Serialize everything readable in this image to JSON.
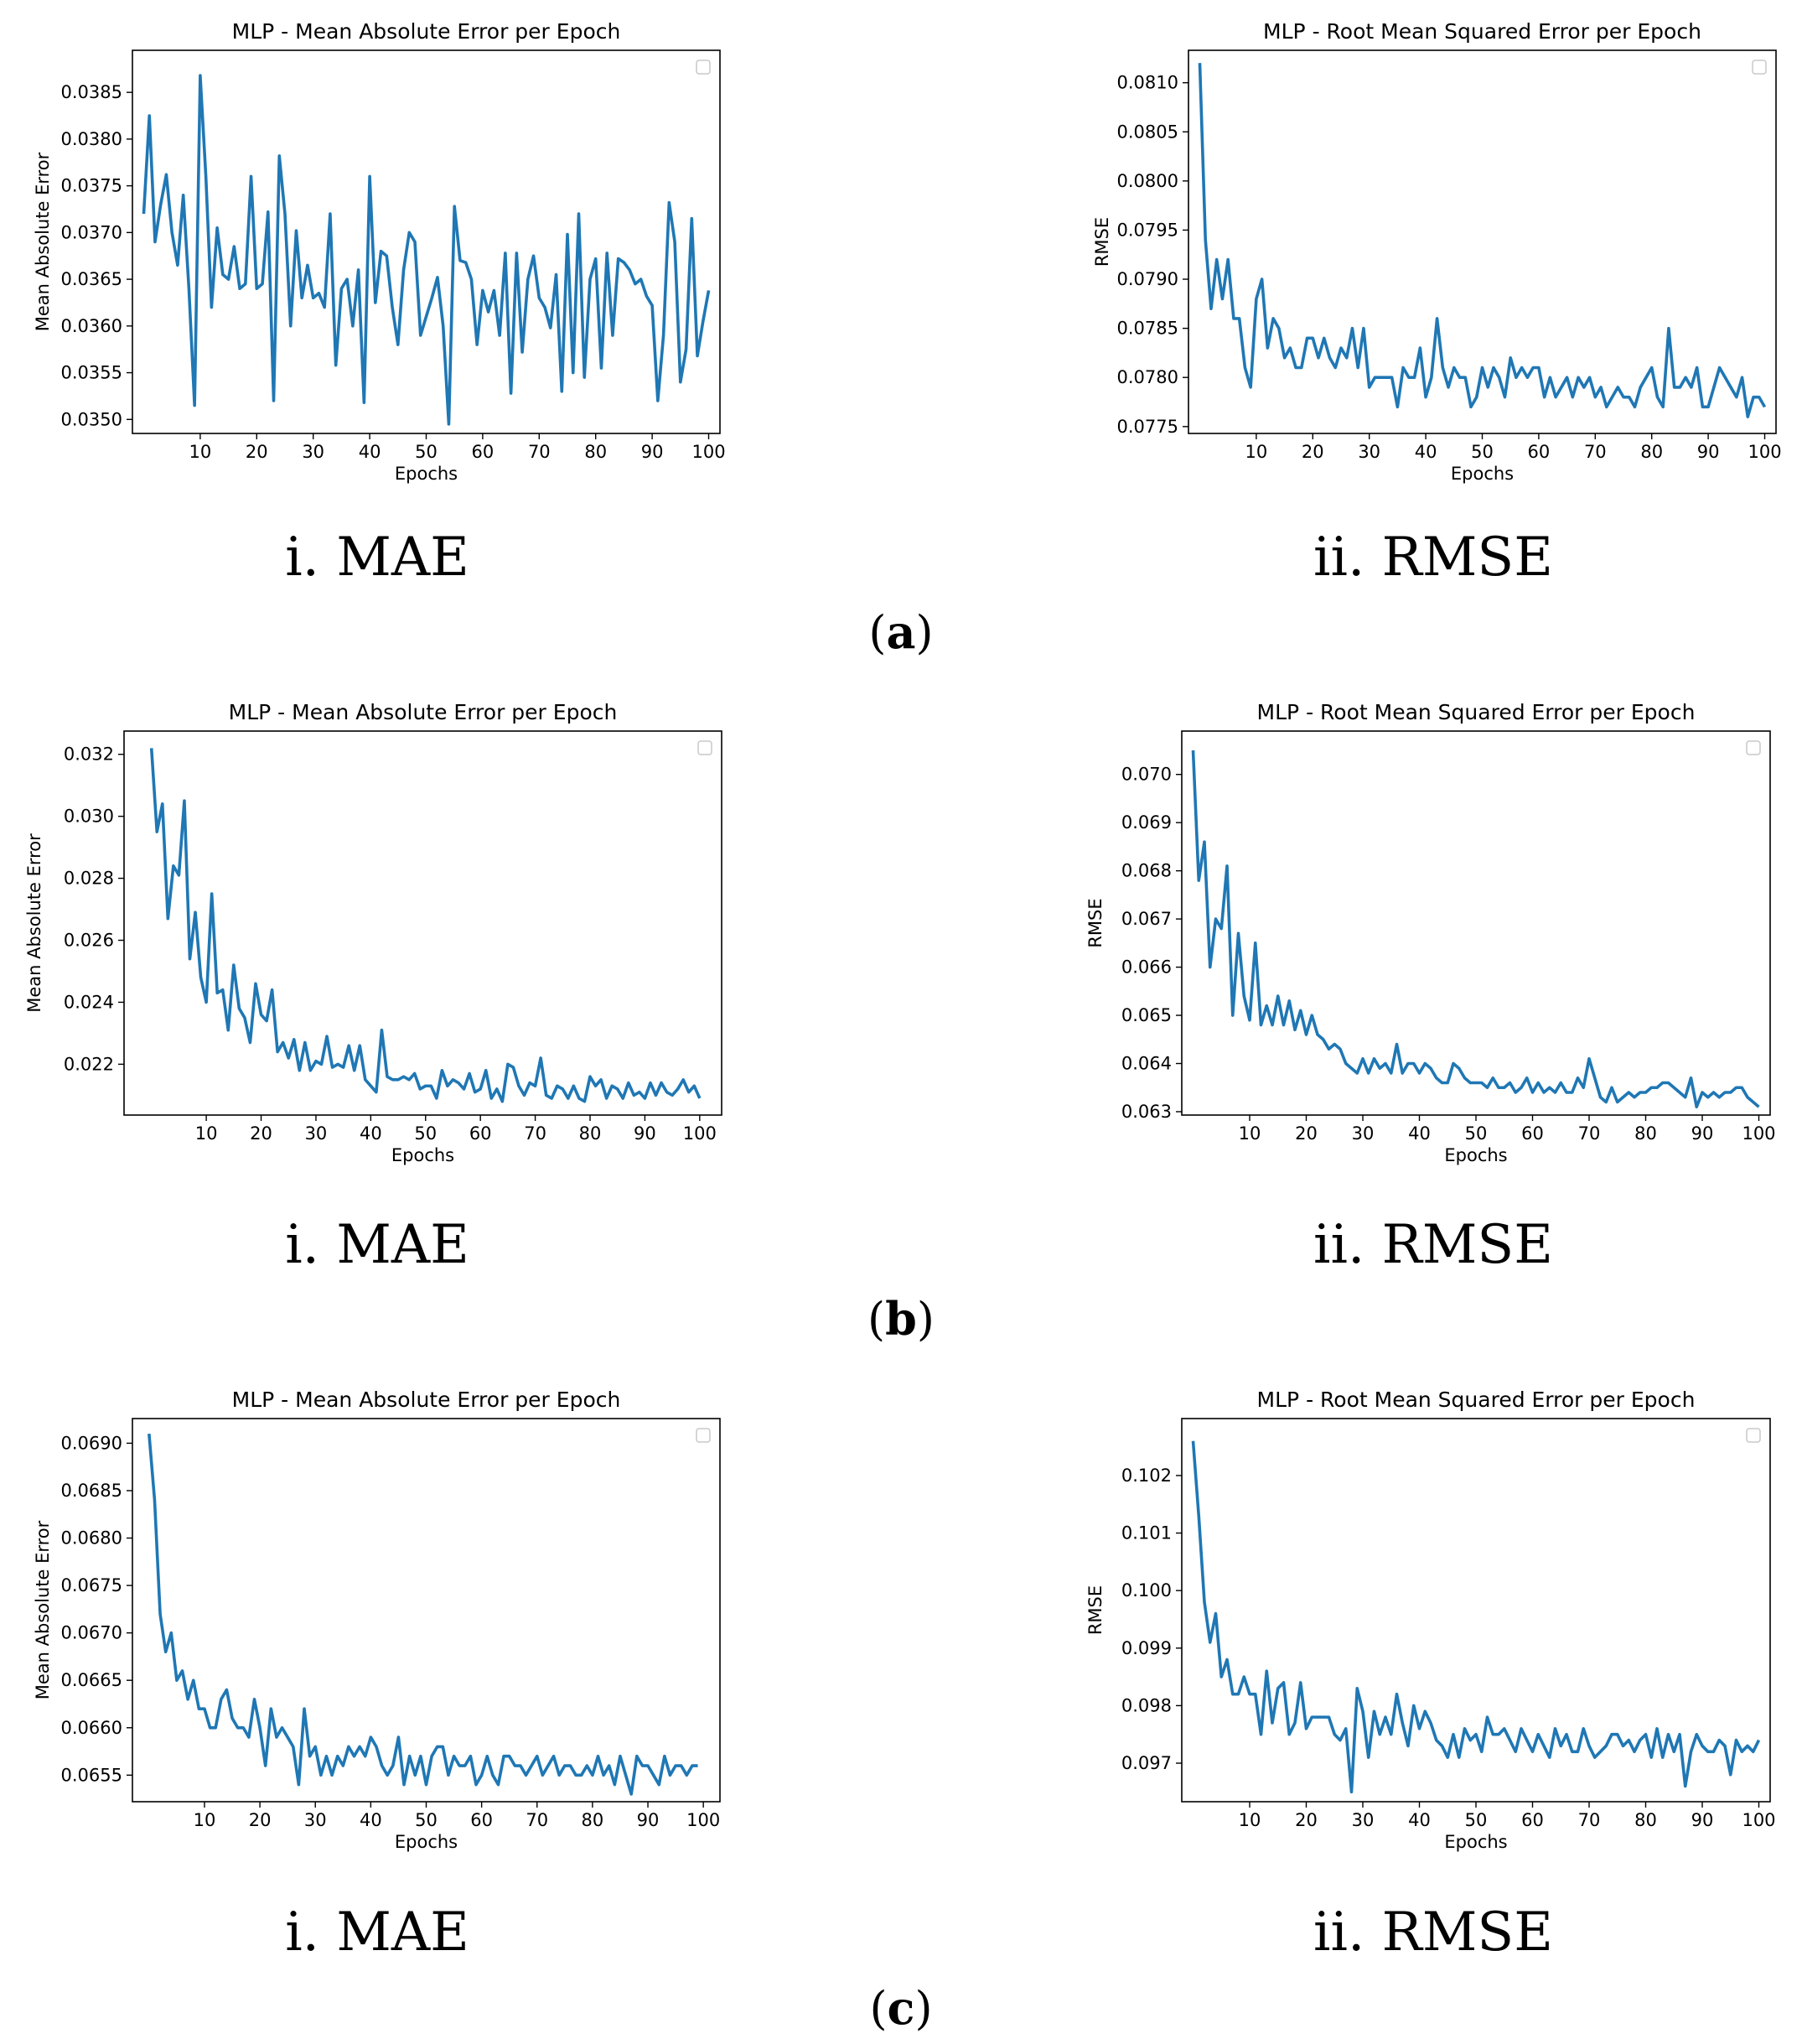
{
  "accent_color": "#1f77b4",
  "panels": [
    {
      "label": "a",
      "sub_captions": [
        "i. MAE",
        "ii. RMSE"
      ]
    },
    {
      "label": "b",
      "sub_captions": [
        "i. MAE",
        "ii. RMSE"
      ]
    },
    {
      "label": "c",
      "sub_captions": [
        "i. MAE",
        "ii. RMSE"
      ]
    }
  ],
  "chart_data": [
    {
      "type": "line",
      "panel": "a",
      "subplot": "i",
      "title": "MLP -  Mean Absolute Error per Epoch",
      "xlabel": "Epochs",
      "ylabel": "Mean Absolute Error",
      "xlim": [
        -2.0,
        102.0
      ],
      "ylim": [
        0.03485,
        0.03895
      ],
      "xticks": [
        10,
        20,
        30,
        40,
        50,
        60,
        70,
        80,
        90,
        100
      ],
      "yticks": [
        0.035,
        0.0355,
        0.036,
        0.0365,
        0.037,
        0.0375,
        0.038,
        0.0385
      ],
      "ytick_labels": [
        "0.0350",
        "0.0355",
        "0.0360",
        "0.0365",
        "0.0370",
        "0.0375",
        "0.0380",
        "0.0385"
      ],
      "legend": "top-right (empty)",
      "series": [
        {
          "name": "MAE",
          "values": [
            0.0372,
            0.03825,
            0.0369,
            0.0373,
            0.03762,
            0.037,
            0.03665,
            0.0374,
            0.0364,
            0.03515,
            0.03868,
            0.0376,
            0.0362,
            0.03705,
            0.03655,
            0.0365,
            0.03685,
            0.0364,
            0.03645,
            0.0376,
            0.0364,
            0.03645,
            0.03722,
            0.0352,
            0.03782,
            0.0372,
            0.036,
            0.03702,
            0.0363,
            0.03665,
            0.0363,
            0.03635,
            0.0362,
            0.0372,
            0.03558,
            0.0364,
            0.0365,
            0.036,
            0.0366,
            0.03518,
            0.0376,
            0.03625,
            0.0368,
            0.03675,
            0.0362,
            0.0358,
            0.0366,
            0.037,
            0.0369,
            0.0359,
            0.0361,
            0.0363,
            0.03652,
            0.036,
            0.03495,
            0.03728,
            0.0367,
            0.03668,
            0.0365,
            0.0358,
            0.03638,
            0.03615,
            0.03638,
            0.0359,
            0.03678,
            0.03528,
            0.03678,
            0.03572,
            0.0365,
            0.03675,
            0.0363,
            0.0362,
            0.03598,
            0.03655,
            0.0353,
            0.03698,
            0.0355,
            0.0372,
            0.03545,
            0.0365,
            0.03672,
            0.03555,
            0.03678,
            0.0359,
            0.03672,
            0.03668,
            0.0366,
            0.03645,
            0.0365,
            0.03632,
            0.03622,
            0.0352,
            0.0359,
            0.03732,
            0.0369,
            0.0354,
            0.03575,
            0.03715,
            0.03568,
            0.03605,
            0.03638
          ]
        }
      ]
    },
    {
      "type": "line",
      "panel": "a",
      "subplot": "ii",
      "title": "MLP - Root Mean Squared Error per Epoch",
      "xlabel": "Epochs",
      "ylabel": "RMSE",
      "xlim": [
        -2.0,
        102.0
      ],
      "ylim": [
        0.07743,
        0.08133
      ],
      "xticks": [
        10,
        20,
        30,
        40,
        50,
        60,
        70,
        80,
        90,
        100
      ],
      "yticks": [
        0.0775,
        0.078,
        0.0785,
        0.079,
        0.0795,
        0.08,
        0.0805,
        0.081
      ],
      "ytick_labels": [
        "0.0775",
        "0.0780",
        "0.0785",
        "0.0790",
        "0.0795",
        "0.0800",
        "0.0805",
        "0.0810"
      ],
      "legend": "top-right (empty)",
      "series": [
        {
          "name": "RMSE",
          "values": [
            0.0812,
            0.0794,
            0.0787,
            0.0792,
            0.0788,
            0.0792,
            0.0786,
            0.0786,
            0.0781,
            0.0779,
            0.0788,
            0.079,
            0.0783,
            0.0786,
            0.0785,
            0.0782,
            0.0783,
            0.0781,
            0.0781,
            0.0784,
            0.0784,
            0.0782,
            0.0784,
            0.0782,
            0.0781,
            0.0783,
            0.0782,
            0.0785,
            0.0781,
            0.0785,
            0.0779,
            0.078,
            0.078,
            0.078,
            0.078,
            0.0777,
            0.0781,
            0.078,
            0.078,
            0.0783,
            0.0778,
            0.078,
            0.0786,
            0.0781,
            0.0779,
            0.0781,
            0.078,
            0.078,
            0.0777,
            0.0778,
            0.0781,
            0.0779,
            0.0781,
            0.078,
            0.0778,
            0.0782,
            0.078,
            0.0781,
            0.078,
            0.0781,
            0.0781,
            0.0778,
            0.078,
            0.0778,
            0.0779,
            0.078,
            0.0778,
            0.078,
            0.0779,
            0.078,
            0.0778,
            0.0779,
            0.0777,
            0.0778,
            0.0779,
            0.0778,
            0.0778,
            0.0777,
            0.0779,
            0.078,
            0.0781,
            0.0778,
            0.0777,
            0.0785,
            0.0779,
            0.0779,
            0.078,
            0.0779,
            0.0781,
            0.0777,
            0.0777,
            0.0779,
            0.0781,
            0.078,
            0.0779,
            0.0778,
            0.078,
            0.0776,
            0.0778,
            0.0778,
            0.0777
          ]
        }
      ]
    },
    {
      "type": "line",
      "panel": "b",
      "subplot": "i",
      "title": "MLP -  Mean Absolute Error per Epoch",
      "xlabel": "Epochs",
      "ylabel": "Mean Absolute Error",
      "xlim": [
        -5.0,
        104.0
      ],
      "ylim": [
        0.02036,
        0.03275
      ],
      "xticks": [
        10,
        20,
        30,
        40,
        50,
        60,
        70,
        80,
        90,
        100
      ],
      "yticks": [
        0.022,
        0.024,
        0.026,
        0.028,
        0.03,
        0.032
      ],
      "ytick_labels": [
        "0.022",
        "0.024",
        "0.026",
        "0.028",
        "0.030",
        "0.032"
      ],
      "legend": "top-right (empty)",
      "series": [
        {
          "name": "MAE",
          "values": [
            0.0322,
            0.0295,
            0.0304,
            0.0267,
            0.0284,
            0.0281,
            0.0305,
            0.0254,
            0.0269,
            0.0248,
            0.024,
            0.0275,
            0.0243,
            0.0244,
            0.0231,
            0.0252,
            0.0238,
            0.0235,
            0.0227,
            0.0246,
            0.0236,
            0.0234,
            0.0244,
            0.0224,
            0.0227,
            0.0222,
            0.0228,
            0.0218,
            0.0227,
            0.0218,
            0.0221,
            0.022,
            0.0229,
            0.0219,
            0.022,
            0.0219,
            0.0226,
            0.0218,
            0.0226,
            0.0215,
            0.0213,
            0.0211,
            0.0231,
            0.0216,
            0.0215,
            0.0215,
            0.0216,
            0.0215,
            0.0217,
            0.0212,
            0.0213,
            0.0213,
            0.0209,
            0.0218,
            0.0213,
            0.0215,
            0.0214,
            0.0212,
            0.0217,
            0.0211,
            0.0212,
            0.0218,
            0.0209,
            0.0212,
            0.0208,
            0.022,
            0.0219,
            0.0213,
            0.021,
            0.0214,
            0.0213,
            0.0222,
            0.021,
            0.0209,
            0.0213,
            0.0212,
            0.0209,
            0.0213,
            0.0209,
            0.0208,
            0.0216,
            0.0213,
            0.0215,
            0.0209,
            0.0213,
            0.0212,
            0.0209,
            0.0214,
            0.021,
            0.0211,
            0.0209,
            0.0214,
            0.021,
            0.0214,
            0.0211,
            0.021,
            0.0212,
            0.0215,
            0.0211,
            0.0213,
            0.0209
          ]
        }
      ]
    },
    {
      "type": "line",
      "panel": "b",
      "subplot": "ii",
      "title": "MLP - Root Mean Squared Error per Epoch",
      "xlabel": "Epochs",
      "ylabel": "RMSE",
      "xlim": [
        -2.0,
        102.0
      ],
      "ylim": [
        0.06293,
        0.0709
      ],
      "xticks": [
        10,
        20,
        30,
        40,
        50,
        60,
        70,
        80,
        90,
        100
      ],
      "yticks": [
        0.063,
        0.064,
        0.065,
        0.066,
        0.067,
        0.068,
        0.069,
        0.07
      ],
      "ytick_labels": [
        "0.063",
        "0.064",
        "0.065",
        "0.066",
        "0.067",
        "0.068",
        "0.069",
        "0.070"
      ],
      "legend": "top-right (empty)",
      "series": [
        {
          "name": "RMSE",
          "values": [
            0.0705,
            0.0678,
            0.0686,
            0.066,
            0.067,
            0.0668,
            0.0681,
            0.065,
            0.0667,
            0.0654,
            0.0649,
            0.0665,
            0.0648,
            0.0652,
            0.0648,
            0.0654,
            0.0648,
            0.0653,
            0.0647,
            0.0651,
            0.0646,
            0.065,
            0.0646,
            0.0645,
            0.0643,
            0.0644,
            0.0643,
            0.064,
            0.0639,
            0.0638,
            0.0641,
            0.0638,
            0.0641,
            0.0639,
            0.064,
            0.0638,
            0.0644,
            0.0638,
            0.064,
            0.064,
            0.0638,
            0.064,
            0.0639,
            0.0637,
            0.0636,
            0.0636,
            0.064,
            0.0639,
            0.0637,
            0.0636,
            0.0636,
            0.0636,
            0.0635,
            0.0637,
            0.0635,
            0.0635,
            0.0636,
            0.0634,
            0.0635,
            0.0637,
            0.0634,
            0.0636,
            0.0634,
            0.0635,
            0.0634,
            0.0636,
            0.0634,
            0.0634,
            0.0637,
            0.0635,
            0.0641,
            0.0637,
            0.0633,
            0.0632,
            0.0635,
            0.0632,
            0.0633,
            0.0634,
            0.0633,
            0.0634,
            0.0634,
            0.0635,
            0.0635,
            0.0636,
            0.0636,
            0.0635,
            0.0634,
            0.0633,
            0.0637,
            0.0631,
            0.0634,
            0.0633,
            0.0634,
            0.0633,
            0.0634,
            0.0634,
            0.0635,
            0.0635,
            0.0633,
            0.0632,
            0.0631
          ]
        }
      ]
    },
    {
      "type": "line",
      "panel": "c",
      "subplot": "i",
      "title": "MLP -  Mean Absolute Error per Epoch",
      "xlabel": "Epochs",
      "ylabel": "Mean Absolute Error",
      "xlim": [
        -3.0,
        103.0
      ],
      "ylim": [
        0.06522,
        0.06926
      ],
      "xticks": [
        10,
        20,
        30,
        40,
        50,
        60,
        70,
        80,
        90,
        100
      ],
      "yticks": [
        0.0655,
        0.066,
        0.0665,
        0.067,
        0.0675,
        0.068,
        0.0685,
        0.069
      ],
      "ytick_labels": [
        "0.0655",
        "0.0660",
        "0.0665",
        "0.0670",
        "0.0675",
        "0.0680",
        "0.0685",
        "0.0690"
      ],
      "legend": "top-right (empty)",
      "series": [
        {
          "name": "MAE",
          "values": [
            0.0691,
            0.0684,
            0.0672,
            0.0668,
            0.067,
            0.0665,
            0.0666,
            0.0663,
            0.0665,
            0.0662,
            0.0662,
            0.066,
            0.066,
            0.0663,
            0.0664,
            0.0661,
            0.066,
            0.066,
            0.0659,
            0.0663,
            0.066,
            0.0656,
            0.0662,
            0.0659,
            0.066,
            0.0659,
            0.0658,
            0.0654,
            0.0662,
            0.0657,
            0.0658,
            0.0655,
            0.0657,
            0.0655,
            0.0657,
            0.0656,
            0.0658,
            0.0657,
            0.0658,
            0.0657,
            0.0659,
            0.0658,
            0.0656,
            0.0655,
            0.0656,
            0.0659,
            0.0654,
            0.0657,
            0.0655,
            0.0657,
            0.0654,
            0.0657,
            0.0658,
            0.0658,
            0.0655,
            0.0657,
            0.0656,
            0.0656,
            0.0657,
            0.0654,
            0.0655,
            0.0657,
            0.0655,
            0.0654,
            0.0657,
            0.0657,
            0.0656,
            0.0656,
            0.0655,
            0.0656,
            0.0657,
            0.0655,
            0.0656,
            0.0657,
            0.0655,
            0.0656,
            0.0656,
            0.0655,
            0.0655,
            0.0656,
            0.0655,
            0.0657,
            0.0655,
            0.0656,
            0.0654,
            0.0657,
            0.0655,
            0.0653,
            0.0657,
            0.0656,
            0.0656,
            0.0655,
            0.0654,
            0.0657,
            0.0655,
            0.0656,
            0.0656,
            0.0655,
            0.0656,
            0.0656
          ]
        }
      ]
    },
    {
      "type": "line",
      "panel": "c",
      "subplot": "ii",
      "title": "MLP - Root Mean Squared Error per Epoch",
      "xlabel": "Epochs",
      "ylabel": "RMSE",
      "xlim": [
        -2.0,
        102.0
      ],
      "ylim": [
        0.09633,
        0.10299
      ],
      "xticks": [
        10,
        20,
        30,
        40,
        50,
        60,
        70,
        80,
        90,
        100
      ],
      "yticks": [
        0.097,
        0.098,
        0.099,
        0.1,
        0.101,
        0.102
      ],
      "ytick_labels": [
        "0.097",
        "0.098",
        "0.099",
        "0.100",
        "0.101",
        "0.102"
      ],
      "legend": "top-right (empty)",
      "series": [
        {
          "name": "RMSE",
          "values": [
            0.1026,
            0.1013,
            0.0998,
            0.0991,
            0.0996,
            0.0985,
            0.0988,
            0.0982,
            0.0982,
            0.0985,
            0.0982,
            0.0982,
            0.0975,
            0.0986,
            0.0977,
            0.0983,
            0.0984,
            0.0975,
            0.0977,
            0.0984,
            0.0976,
            0.0978,
            0.0978,
            0.0978,
            0.0978,
            0.0975,
            0.0974,
            0.0976,
            0.0965,
            0.0983,
            0.0979,
            0.0971,
            0.0979,
            0.0975,
            0.0978,
            0.0975,
            0.0982,
            0.0977,
            0.0973,
            0.098,
            0.0976,
            0.0979,
            0.0977,
            0.0974,
            0.0973,
            0.0971,
            0.0975,
            0.0971,
            0.0976,
            0.0974,
            0.0975,
            0.0972,
            0.0978,
            0.0975,
            0.0975,
            0.0976,
            0.0974,
            0.0972,
            0.0976,
            0.0974,
            0.0972,
            0.0975,
            0.0973,
            0.0971,
            0.0976,
            0.0973,
            0.0975,
            0.0972,
            0.0972,
            0.0976,
            0.0973,
            0.0971,
            0.0972,
            0.0973,
            0.0975,
            0.0975,
            0.0973,
            0.0974,
            0.0972,
            0.0974,
            0.0975,
            0.0971,
            0.0976,
            0.0971,
            0.0975,
            0.0972,
            0.0975,
            0.0966,
            0.0972,
            0.0975,
            0.0973,
            0.0972,
            0.0972,
            0.0974,
            0.0973,
            0.0968,
            0.0974,
            0.0972,
            0.0973,
            0.0972,
            0.0974
          ]
        }
      ]
    }
  ]
}
